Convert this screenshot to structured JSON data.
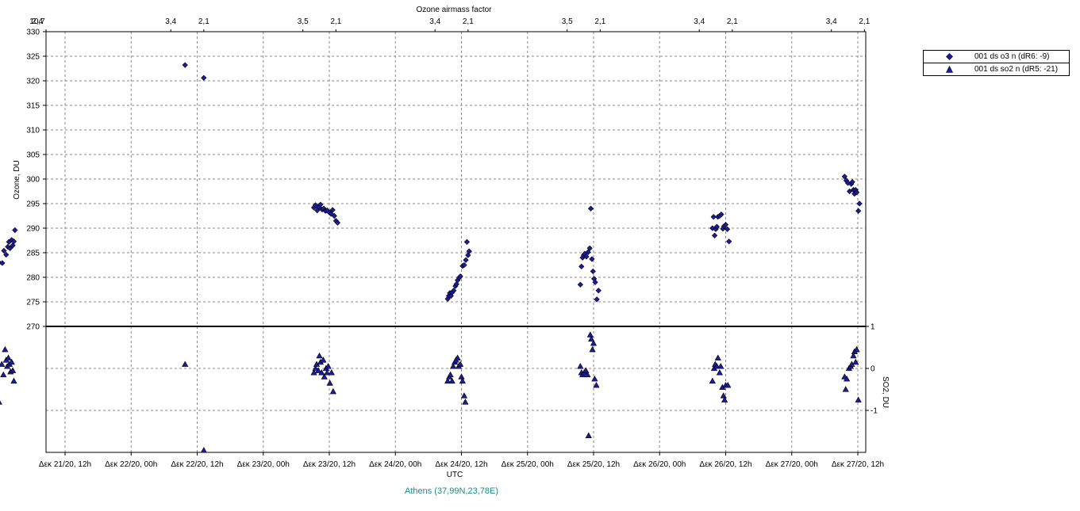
{
  "chart_data": {
    "type": "scatter",
    "location": "Athens (37,99N,23,78E)",
    "xlabel": "UTC",
    "top_axis_label": "Ozone airmass factor",
    "ylabel_top": "Ozone, DU",
    "ylabel_bottom": "SO2, DU",
    "x_range_hours": [
      0,
      156
    ],
    "x_ticks": [
      {
        "h": 12,
        "label": "Δεκ 21/20, 12h"
      },
      {
        "h": 24,
        "label": "Δεκ 22/20, 00h"
      },
      {
        "h": 36,
        "label": "Δεκ 22/20, 12h"
      },
      {
        "h": 48,
        "label": "Δεκ 23/20, 00h"
      },
      {
        "h": 60,
        "label": "Δεκ 23/20, 12h"
      },
      {
        "h": 72,
        "label": "Δεκ 24/20, 00h"
      },
      {
        "h": 84,
        "label": "Δεκ 24/20, 12h"
      },
      {
        "h": 96,
        "label": "Δεκ 25/20, 00h"
      },
      {
        "h": 108,
        "label": "Δεκ 25/20, 12h"
      },
      {
        "h": 120,
        "label": "Δεκ 26/20, 00h"
      },
      {
        "h": 132,
        "label": "Δεκ 26/20, 12h"
      },
      {
        "h": 144,
        "label": "Δεκ 27/20, 00h"
      },
      {
        "h": 156,
        "label": "Δεκ 27/20, 12h"
      }
    ],
    "top_ticks": [
      {
        "h": 0,
        "label": "2,4"
      },
      {
        "h": 5.4,
        "label": "10,7"
      },
      {
        "h": 31.2,
        "label": "3,4"
      },
      {
        "h": 37.2,
        "label": "2,1"
      },
      {
        "h": 55.2,
        "label": "3,5"
      },
      {
        "h": 61.2,
        "label": "2,1"
      },
      {
        "h": 79.2,
        "label": "3,4"
      },
      {
        "h": 85.2,
        "label": "2,1"
      },
      {
        "h": 103.2,
        "label": "3,5"
      },
      {
        "h": 109.2,
        "label": "2,1"
      },
      {
        "h": 127.2,
        "label": "3,4"
      },
      {
        "h": 133.2,
        "label": "2,1"
      },
      {
        "h": 151.2,
        "label": "3,4"
      },
      {
        "h": 157.2,
        "label": "2,1"
      }
    ],
    "ozone_axis": {
      "min": 270,
      "max": 330,
      "ticks": [
        270,
        275,
        280,
        285,
        290,
        295,
        300,
        305,
        310,
        315,
        320,
        325,
        330
      ]
    },
    "so2_axis": {
      "min": -2,
      "max": 1,
      "ticks": [
        1,
        0,
        -1
      ]
    },
    "grid": true,
    "legend_placement": "top-right",
    "series": [
      {
        "name": "001 ds o3  n (dR6: -9)",
        "marker": "diamond",
        "color": "#1c1ca0",
        "points": [
          [
            0.0,
            283.0
          ],
          [
            0.6,
            282.9
          ],
          [
            0.9,
            285.4
          ],
          [
            1.3,
            284.6
          ],
          [
            1.6,
            286.2
          ],
          [
            1.8,
            287.2
          ],
          [
            2.0,
            285.9
          ],
          [
            2.3,
            287.6
          ],
          [
            2.5,
            286.5
          ],
          [
            2.7,
            287.3
          ],
          [
            2.9,
            289.6
          ],
          [
            33.8,
            323.2
          ],
          [
            37.2,
            320.6
          ],
          [
            57.2,
            294.2
          ],
          [
            57.5,
            294.7
          ],
          [
            57.8,
            293.6
          ],
          [
            58.1,
            294.3
          ],
          [
            58.4,
            294.8
          ],
          [
            58.7,
            293.8
          ],
          [
            59.0,
            294.0
          ],
          [
            59.3,
            293.5
          ],
          [
            59.6,
            293.6
          ],
          [
            60.0,
            293.2
          ],
          [
            60.3,
            292.9
          ],
          [
            60.6,
            293.7
          ],
          [
            60.9,
            292.5
          ],
          [
            61.2,
            291.5
          ],
          [
            61.5,
            291.1
          ],
          [
            81.5,
            275.6
          ],
          [
            81.7,
            276.2
          ],
          [
            81.9,
            276.8
          ],
          [
            82.1,
            276.2
          ],
          [
            82.3,
            276.9
          ],
          [
            82.6,
            277.3
          ],
          [
            82.9,
            278.2
          ],
          [
            83.1,
            278.6
          ],
          [
            83.3,
            279.4
          ],
          [
            83.6,
            279.9
          ],
          [
            83.8,
            280.2
          ],
          [
            84.2,
            282.3
          ],
          [
            84.5,
            282.5
          ],
          [
            84.8,
            283.5
          ],
          [
            85.0,
            287.2
          ],
          [
            85.2,
            284.5
          ],
          [
            85.4,
            285.3
          ],
          [
            105.6,
            278.5
          ],
          [
            105.8,
            282.2
          ],
          [
            106.0,
            284.0
          ],
          [
            106.2,
            284.5
          ],
          [
            106.4,
            284.8
          ],
          [
            106.7,
            284.2
          ],
          [
            107.0,
            285.1
          ],
          [
            107.3,
            285.9
          ],
          [
            107.5,
            294.0
          ],
          [
            107.7,
            283.7
          ],
          [
            107.9,
            281.2
          ],
          [
            108.1,
            279.7
          ],
          [
            108.3,
            279.0
          ],
          [
            108.6,
            275.5
          ],
          [
            108.9,
            277.3
          ],
          [
            129.6,
            290.0
          ],
          [
            129.8,
            292.3
          ],
          [
            130.0,
            288.5
          ],
          [
            130.2,
            289.8
          ],
          [
            130.4,
            290.3
          ],
          [
            130.6,
            292.3
          ],
          [
            130.9,
            292.5
          ],
          [
            131.2,
            292.8
          ],
          [
            131.5,
            289.9
          ],
          [
            131.7,
            290.4
          ],
          [
            132.0,
            290.7
          ],
          [
            132.3,
            289.8
          ],
          [
            132.6,
            287.3
          ],
          [
            153.6,
            300.5
          ],
          [
            153.9,
            299.7
          ],
          [
            154.2,
            299.2
          ],
          [
            154.5,
            297.5
          ],
          [
            154.8,
            299.0
          ],
          [
            155.0,
            299.4
          ],
          [
            155.2,
            297.8
          ],
          [
            155.4,
            297.0
          ],
          [
            155.6,
            297.8
          ],
          [
            155.8,
            297.3
          ],
          [
            156.1,
            293.5
          ],
          [
            156.3,
            295.0
          ]
        ]
      },
      {
        "name": "001 ds so2 n (dR5: -21)",
        "marker": "triangle",
        "color": "#1c1ca0",
        "points": [
          [
            0.0,
            -0.8
          ],
          [
            0.5,
            0.1
          ],
          [
            0.8,
            -0.15
          ],
          [
            1.1,
            0.45
          ],
          [
            1.3,
            0.2
          ],
          [
            1.5,
            0.05
          ],
          [
            1.7,
            0.25
          ],
          [
            1.9,
            0.1
          ],
          [
            2.1,
            -0.08
          ],
          [
            2.3,
            0.15
          ],
          [
            2.5,
            -0.05
          ],
          [
            2.7,
            -0.3
          ],
          [
            33.8,
            0.1
          ],
          [
            37.2,
            -1.95
          ],
          [
            57.2,
            -0.1
          ],
          [
            57.5,
            0.0
          ],
          [
            57.7,
            0.1
          ],
          [
            58.0,
            -0.05
          ],
          [
            58.2,
            0.3
          ],
          [
            58.4,
            0.15
          ],
          [
            58.6,
            -0.1
          ],
          [
            58.9,
            0.2
          ],
          [
            59.1,
            -0.2
          ],
          [
            59.4,
            0.0
          ],
          [
            59.6,
            -0.1
          ],
          [
            59.8,
            0.05
          ],
          [
            60.1,
            -0.35
          ],
          [
            60.4,
            -0.1
          ],
          [
            60.7,
            -0.55
          ],
          [
            81.5,
            -0.3
          ],
          [
            81.8,
            -0.2
          ],
          [
            82.0,
            -0.15
          ],
          [
            82.3,
            -0.3
          ],
          [
            82.5,
            0.05
          ],
          [
            82.8,
            0.15
          ],
          [
            83.0,
            0.2
          ],
          [
            83.3,
            0.25
          ],
          [
            83.5,
            0.05
          ],
          [
            83.8,
            0.1
          ],
          [
            84.0,
            -0.2
          ],
          [
            84.2,
            -0.3
          ],
          [
            84.5,
            -0.65
          ],
          [
            84.7,
            -0.8
          ],
          [
            105.6,
            0.05
          ],
          [
            105.8,
            -0.1
          ],
          [
            106.0,
            -0.15
          ],
          [
            106.3,
            -0.1
          ],
          [
            106.6,
            -0.05
          ],
          [
            106.9,
            -0.15
          ],
          [
            107.1,
            -1.6
          ],
          [
            107.4,
            0.8
          ],
          [
            107.6,
            0.7
          ],
          [
            107.8,
            0.45
          ],
          [
            108.0,
            0.6
          ],
          [
            108.2,
            -0.25
          ],
          [
            108.5,
            -0.4
          ],
          [
            129.6,
            -0.3
          ],
          [
            129.9,
            0.0
          ],
          [
            130.1,
            0.1
          ],
          [
            130.4,
            0.05
          ],
          [
            130.6,
            0.25
          ],
          [
            130.9,
            -0.1
          ],
          [
            131.1,
            0.05
          ],
          [
            131.4,
            -0.45
          ],
          [
            131.6,
            -0.65
          ],
          [
            131.8,
            -0.75
          ],
          [
            132.0,
            -0.4
          ],
          [
            132.4,
            -0.4
          ],
          [
            153.6,
            -0.2
          ],
          [
            153.8,
            -0.5
          ],
          [
            154.0,
            -0.25
          ],
          [
            154.4,
            0.0
          ],
          [
            154.7,
            0.05
          ],
          [
            154.9,
            0.1
          ],
          [
            155.2,
            0.3
          ],
          [
            155.4,
            0.4
          ],
          [
            155.6,
            0.15
          ],
          [
            155.8,
            0.45
          ],
          [
            156.1,
            -0.75
          ]
        ]
      }
    ]
  }
}
